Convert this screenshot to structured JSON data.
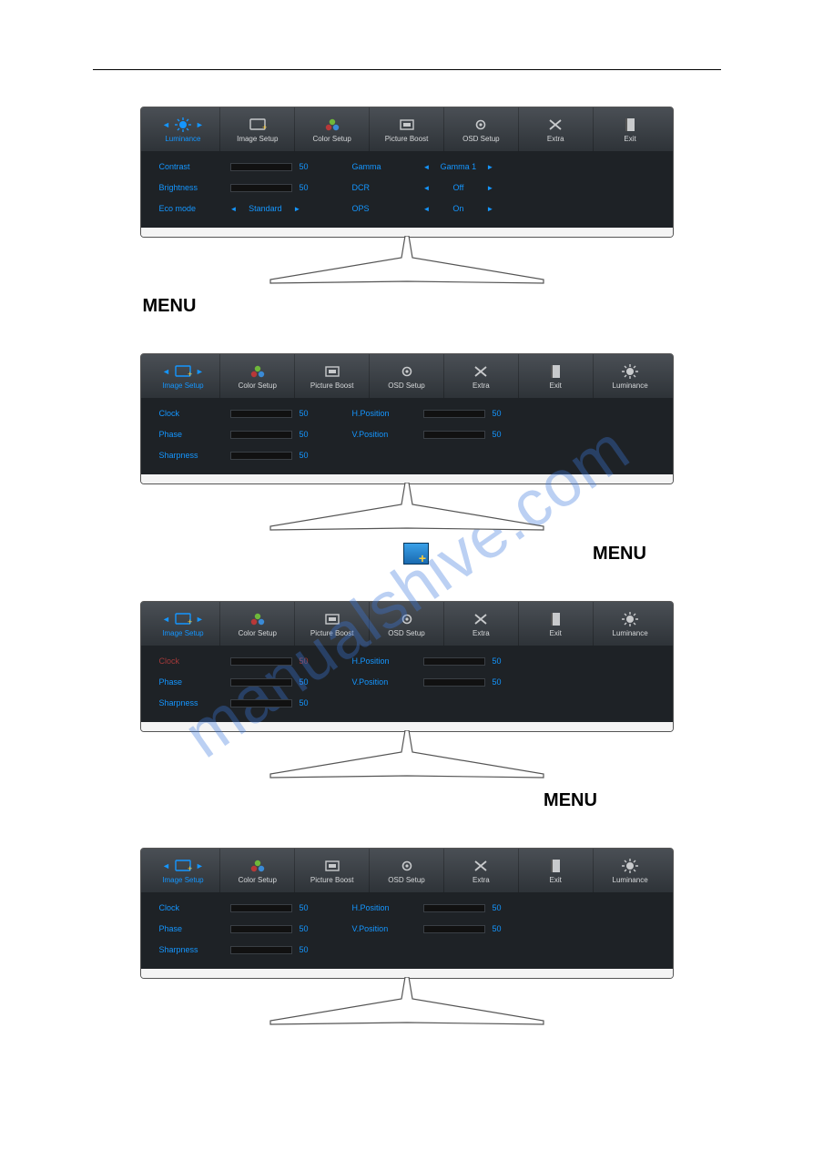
{
  "watermark": "manualshive.com",
  "captions": {
    "menu": "MENU"
  },
  "colors": {
    "accent": "#1496ff",
    "selected_red": "#a43a3a",
    "selected_green": "#7ecb2e",
    "osd_bg": "#1e2226",
    "tabs_bg_top": "#4a4f55",
    "tabs_bg_bottom": "#2e3338"
  },
  "screens": [
    {
      "id": "luminance",
      "selected_tab": 0,
      "tabs": [
        "Luminance",
        "Image Setup",
        "Color Setup",
        "Picture Boost",
        "OSD Setup",
        "Extra",
        "Exit"
      ],
      "cols": [
        [
          {
            "type": "slider",
            "label": "Contrast",
            "value": 50,
            "fill": 50,
            "fill_color": "accent"
          },
          {
            "type": "slider",
            "label": "Brightness",
            "value": 50,
            "fill": 50,
            "fill_color": "accent"
          },
          {
            "type": "option",
            "label": "Eco mode",
            "value": "Standard"
          }
        ],
        [
          {
            "type": "option",
            "label": "Gamma",
            "value": "Gamma 1"
          },
          {
            "type": "option",
            "label": "DCR",
            "value": "Off"
          },
          {
            "type": "option",
            "label": "OPS",
            "value": "On"
          }
        ]
      ]
    },
    {
      "id": "image_setup",
      "selected_tab": 0,
      "tabs": [
        "Image Setup",
        "Color Setup",
        "Picture Boost",
        "OSD Setup",
        "Extra",
        "Exit",
        "Luminance"
      ],
      "cols": [
        [
          {
            "type": "slider",
            "label": "Clock",
            "value": 50,
            "fill": 50,
            "fill_color": "accent"
          },
          {
            "type": "slider",
            "label": "Phase",
            "value": 50,
            "fill": 50,
            "fill_color": "accent"
          },
          {
            "type": "slider",
            "label": "Sharpness",
            "value": 50,
            "fill": 50,
            "fill_color": "accent"
          }
        ],
        [
          {
            "type": "slider",
            "label": "H.Position",
            "value": 50,
            "fill": 50,
            "fill_color": "accent"
          },
          {
            "type": "slider",
            "label": "V.Position",
            "value": 50,
            "fill": 50,
            "fill_color": "accent"
          }
        ]
      ]
    },
    {
      "id": "image_setup_sel_red",
      "selected_tab": 0,
      "tabs": [
        "Image Setup",
        "Color Setup",
        "Picture Boost",
        "OSD Setup",
        "Extra",
        "Exit",
        "Luminance"
      ],
      "cols": [
        [
          {
            "type": "slider",
            "label": "Clock",
            "value": 50,
            "fill": 50,
            "fill_color": "red",
            "selected": true
          },
          {
            "type": "slider",
            "label": "Phase",
            "value": 50,
            "fill": 50,
            "fill_color": "accent"
          },
          {
            "type": "slider",
            "label": "Sharpness",
            "value": 50,
            "fill": 50,
            "fill_color": "accent"
          }
        ],
        [
          {
            "type": "slider",
            "label": "H.Position",
            "value": 50,
            "fill": 50,
            "fill_color": "accent"
          },
          {
            "type": "slider",
            "label": "V.Position",
            "value": 50,
            "fill": 50,
            "fill_color": "accent"
          }
        ]
      ]
    },
    {
      "id": "image_setup_sel_green",
      "selected_tab": 0,
      "tabs": [
        "Image Setup",
        "Color Setup",
        "Picture Boost",
        "OSD Setup",
        "Extra",
        "Exit",
        "Luminance"
      ],
      "cols": [
        [
          {
            "type": "slider",
            "label": "Clock",
            "value": 50,
            "fill": 50,
            "fill_color": "green",
            "selected": true,
            "selected_style": "green"
          },
          {
            "type": "slider",
            "label": "Phase",
            "value": 50,
            "fill": 50,
            "fill_color": "accent"
          },
          {
            "type": "slider",
            "label": "Sharpness",
            "value": 50,
            "fill": 50,
            "fill_color": "accent"
          }
        ],
        [
          {
            "type": "slider",
            "label": "H.Position",
            "value": 50,
            "fill": 50,
            "fill_color": "accent"
          },
          {
            "type": "slider",
            "label": "V.Position",
            "value": 50,
            "fill": 50,
            "fill_color": "accent"
          }
        ]
      ]
    }
  ],
  "tab_icons": {
    "Luminance": "sun",
    "Image Setup": "screen",
    "Color Setup": "balls",
    "Picture Boost": "frame",
    "OSD Setup": "gear",
    "Extra": "tools",
    "Exit": "door"
  }
}
